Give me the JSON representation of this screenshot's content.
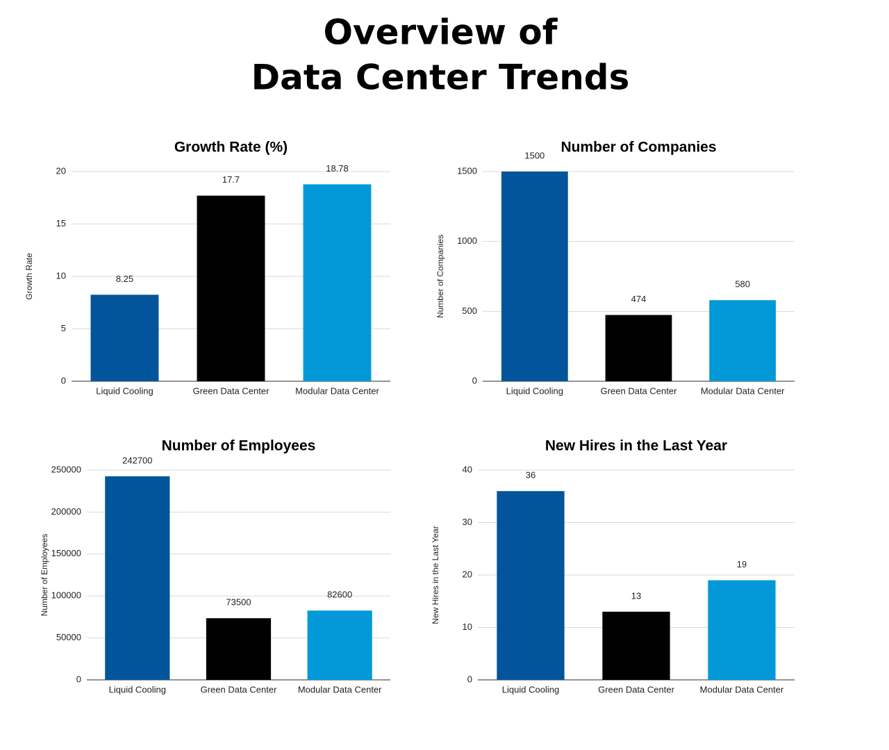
{
  "title": [
    "Overview of",
    "Data Center Trends"
  ],
  "chart_data": [
    {
      "type": "bar",
      "title": "Growth Rate (%)",
      "y_label": "Growth Rate",
      "categories": [
        "Liquid Cooling",
        "Green Data Center",
        "Modular Data Center"
      ],
      "values": [
        8.25,
        17.7,
        18.78
      ],
      "colors": [
        "#03559b",
        "#000000",
        "#0399d8"
      ],
      "ylim": [
        0,
        20
      ],
      "yticks": [
        0,
        5,
        10,
        15,
        20
      ],
      "grid": true
    },
    {
      "type": "bar",
      "title": "Number of Companies",
      "y_label": "Number of Companies",
      "categories": [
        "Liquid Cooling",
        "Green Data Center",
        "Modular Data Center"
      ],
      "values": [
        1500,
        474,
        580
      ],
      "colors": [
        "#03559b",
        "#000000",
        "#0399d8"
      ],
      "ylim": [
        0,
        1500
      ],
      "yticks": [
        0,
        500,
        1000,
        1500
      ],
      "grid": true
    },
    {
      "type": "bar",
      "title": "Number of Employees",
      "y_label": "Number of Employees",
      "categories": [
        "Liquid Cooling",
        "Green Data Center",
        "Modular Data Center"
      ],
      "values": [
        242700,
        73500,
        82600
      ],
      "colors": [
        "#03559b",
        "#000000",
        "#0399d8"
      ],
      "ylim": [
        0,
        250000
      ],
      "yticks": [
        0,
        50000,
        100000,
        150000,
        200000,
        250000
      ],
      "grid": true
    },
    {
      "type": "bar",
      "title": "New Hires in the Last Year",
      "y_label": "New Hires in the Last Year",
      "categories": [
        "Liquid Cooling",
        "Green Data Center",
        "Modular Data Center"
      ],
      "values": [
        36,
        13,
        19
      ],
      "colors": [
        "#03559b",
        "#000000",
        "#0399d8"
      ],
      "ylim": [
        0,
        40
      ],
      "yticks": [
        0,
        10,
        20,
        30,
        40
      ],
      "grid": true
    }
  ]
}
